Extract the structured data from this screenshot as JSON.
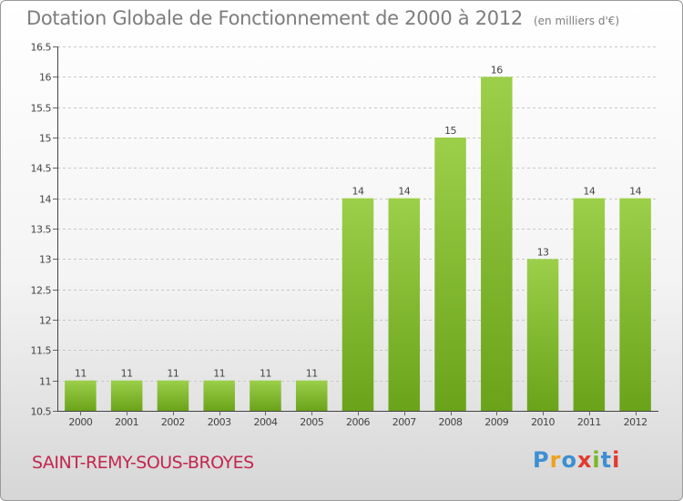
{
  "chart_data": {
    "type": "bar",
    "title": "Dotation Globale de Fonctionnement de 2000 à 2012",
    "subtitle": "(en milliers d'€)",
    "categories": [
      "2000",
      "2001",
      "2002",
      "2003",
      "2004",
      "2005",
      "2006",
      "2007",
      "2008",
      "2009",
      "2010",
      "2011",
      "2012"
    ],
    "values": [
      11,
      11,
      11,
      11,
      11,
      11,
      14,
      14,
      15,
      16,
      13,
      14,
      14
    ],
    "data_labels": [
      "11",
      "11",
      "11",
      "11",
      "11",
      "11",
      "14",
      "14",
      "15",
      "16",
      "13",
      "14",
      "14"
    ],
    "ylim": [
      10.5,
      16.5
    ],
    "yticks": [
      10.5,
      11,
      11.5,
      12,
      12.5,
      13,
      13.5,
      14,
      14.5,
      15,
      15.5,
      16,
      16.5
    ],
    "ytick_labels": [
      "10.5",
      "11",
      "11.5",
      "12",
      "12.5",
      "13",
      "13.5",
      "14",
      "14.5",
      "15",
      "15.5",
      "16",
      "16.5"
    ],
    "grid": true,
    "xlabel": "",
    "ylabel": "",
    "bar_color_light": "#9ccf4a",
    "bar_color_dark": "#6aa31a"
  },
  "commune": "SAINT-REMY-SOUS-BROYES",
  "brand": [
    "P",
    "r",
    "o",
    "x",
    "i",
    "t",
    "i"
  ]
}
